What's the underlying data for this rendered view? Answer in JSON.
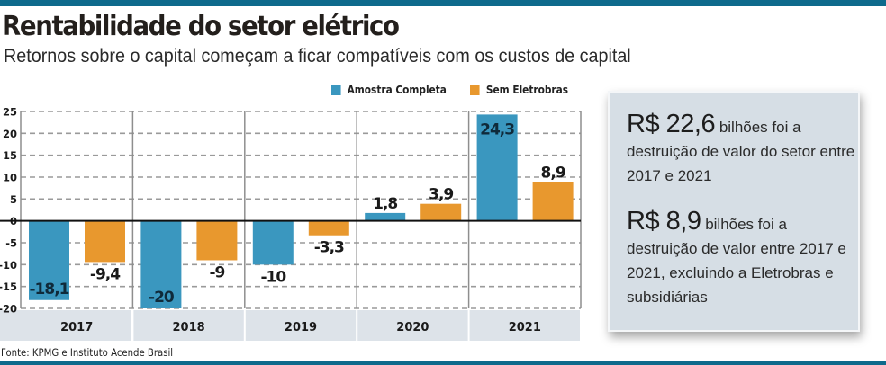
{
  "header": {
    "title": "Rentabilidade do setor elétrico",
    "subtitle": "Retornos sobre o capital começam a ficar compatíveis com os custos de capital"
  },
  "colors": {
    "top_bar": "#0e6a8c",
    "series_complete": "#3a97bf",
    "series_no_eletrobras": "#e8982e",
    "infobox_bg": "#d6dee5",
    "year_band": "#dde3e9"
  },
  "legend": [
    {
      "label": "Amostra Completa",
      "color": "#3a97bf"
    },
    {
      "label": "Sem Eletrobras",
      "color": "#e8982e"
    }
  ],
  "chart_data": {
    "type": "bar",
    "title": "Rentabilidade do setor elétrico",
    "subtitle": "Retornos sobre o capital começam a ficar compatíveis com os custos de capital",
    "xlabel": "",
    "ylabel": "",
    "categories": [
      "2017",
      "2018",
      "2019",
      "2020",
      "2021"
    ],
    "series": [
      {
        "name": "Amostra Completa",
        "color": "#3a97bf",
        "values": [
          -18.1,
          -20,
          -10,
          1.8,
          24.3
        ],
        "labels": [
          "-18,1",
          "-20",
          "-10",
          "1,8",
          "24,3"
        ]
      },
      {
        "name": "Sem Eletrobras",
        "color": "#e8982e",
        "values": [
          -9.4,
          -9,
          -3.3,
          3.9,
          8.9
        ],
        "labels": [
          "-9,4",
          "-9",
          "-3,3",
          "3,9",
          "8,9"
        ]
      }
    ],
    "ylim": [
      -20,
      25
    ],
    "yticks": [
      25,
      20,
      15,
      10,
      5,
      0,
      -5,
      -10,
      -15,
      -20
    ],
    "ytick_labels": [
      "25",
      "20",
      "15",
      "10",
      "5",
      "0",
      "-5",
      "-10",
      "-15",
      "-20"
    ],
    "grid": true,
    "legend_position": "top-right"
  },
  "source": "Fonte: KPMG e Instituto Acende Brasil",
  "infobox": {
    "block1": {
      "amount": "R$ 22,6",
      "text_inline": "bilhões foi a",
      "text_rest": "destruição de valor do setor entre 2017 e 2021"
    },
    "block2": {
      "amount": "R$ 8,9",
      "text_inline": "bilhões foi a",
      "text_rest": "destruição de valor entre 2017 e 2021, excluindo a Eletrobras e subsidiárias"
    }
  }
}
